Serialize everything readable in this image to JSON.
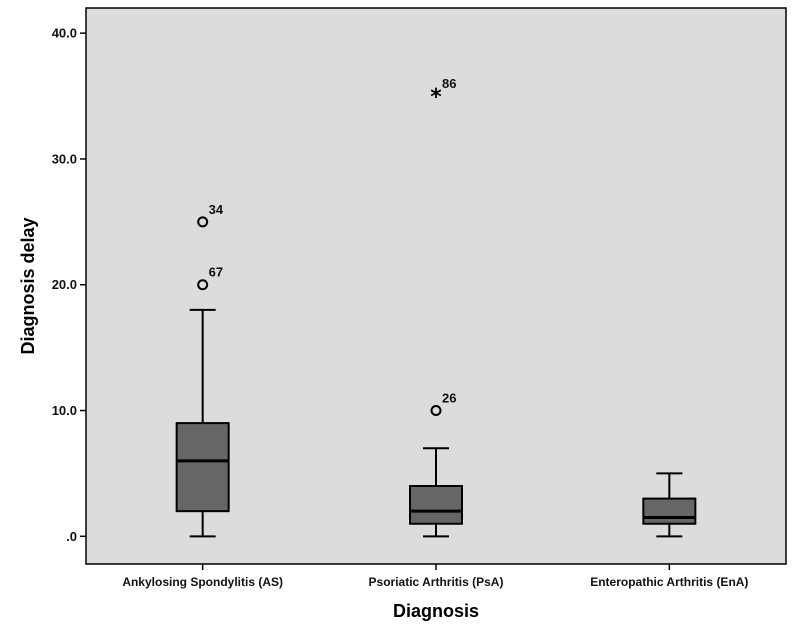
{
  "chart_data": {
    "type": "boxplot",
    "xlabel": "Diagnosis",
    "ylabel": "Diagnosis delay",
    "ylim": [
      -2.2,
      42
    ],
    "yticks": [
      0,
      10,
      20,
      30,
      40
    ],
    "ytick_labels": [
      ".0",
      "10.0",
      "20.0",
      "30.0",
      "40.0"
    ],
    "grid": false,
    "plot_background": "#dcdcdc",
    "box_color": "#666666",
    "categories": [
      "Ankylosing Spondylitis (AS)",
      "Psoriatic Arthritis (PsA)",
      "Enteropathic Arthritis (EnA)"
    ],
    "boxes": [
      {
        "category": "Ankylosing Spondylitis (AS)",
        "whisker_low": 0,
        "q1": 2,
        "median": 6,
        "q3": 9,
        "whisker_high": 18,
        "outliers": [
          {
            "value": 25,
            "label": "34",
            "marker": "circle"
          },
          {
            "value": 20,
            "label": "67",
            "marker": "circle"
          }
        ]
      },
      {
        "category": "Psoriatic Arthritis (PsA)",
        "whisker_low": 0,
        "q1": 1,
        "median": 2,
        "q3": 4,
        "whisker_high": 7,
        "outliers": [
          {
            "value": 35,
            "label": "86",
            "marker": "star"
          },
          {
            "value": 10,
            "label": "26",
            "marker": "circle"
          }
        ]
      },
      {
        "category": "Enteropathic Arthritis (EnA)",
        "whisker_low": 0,
        "q1": 1,
        "median": 1.5,
        "q3": 3,
        "whisker_high": 5,
        "outliers": []
      }
    ]
  }
}
